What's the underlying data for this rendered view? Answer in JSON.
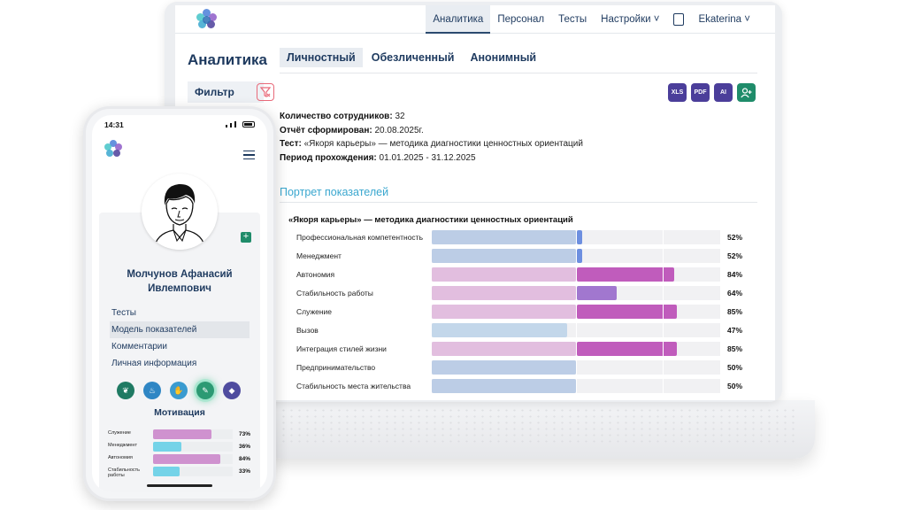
{
  "desktop": {
    "nav": {
      "items": [
        "Аналитика",
        "Персонал",
        "Тесты",
        "Настройки"
      ],
      "active_index": 0,
      "user": "Ekaterina"
    },
    "page_title": "Аналитика",
    "tabs": [
      "Личностный",
      "Обезличенный",
      "Анонимный"
    ],
    "filter_label": "Фильтр",
    "info": {
      "employees_label": "Количество сотрудников:",
      "employees_value": "32",
      "report_label": "Отчёт сформирован:",
      "report_value": "20.08.2025г.",
      "test_label": "Тест:",
      "test_value": "«Якоря карьеры» — методика диагностики ценностных ориентаций",
      "period_label": "Период прохождения:",
      "period_value": "01.01.2025 - 31.12.2025"
    },
    "section_title": "Портрет показателей",
    "chart_title": "«Якоря карьеры» — методика диагностики ценностных ориентаций"
  },
  "chart_data": {
    "type": "bar",
    "orientation": "horizontal",
    "title": "«Якоря карьеры» — методика диагностики ценностных ориентаций",
    "categories": [
      "Профессиональная компетентность",
      "Менеджмент",
      "Автономия",
      "Стабильность работы",
      "Служение",
      "Вызов",
      "Интеграция стилей жизни",
      "Предпринимательство",
      "Стабильность места жительства"
    ],
    "values": [
      52,
      52,
      84,
      64,
      85,
      47,
      85,
      50,
      50
    ],
    "labels": [
      "52%",
      "52%",
      "84%",
      "64%",
      "85%",
      "47%",
      "85%",
      "50%",
      "50%"
    ],
    "xlim": [
      0,
      100
    ]
  },
  "colors": {
    "pink_light": "#e2bedf",
    "magenta": "#c05cbc",
    "blue_light": "#bccde6",
    "blue_dark": "#6d8fe0",
    "violet": "#a177cf",
    "sky_light": "#c3d7ea",
    "cyan": "#74d3e8",
    "brand": "#1e3a5f",
    "green": "#1f8c6a",
    "indigo": "#4b3e9a"
  },
  "mobile": {
    "time": "14:31",
    "name_line1": "Молчунов Афанасий",
    "name_line2": "Ивлемпович",
    "menu": [
      "Тесты",
      "Модель показателей",
      "Комментарии",
      "Личная информация"
    ],
    "active_menu_index": 1,
    "motivation_title": "Мотивация",
    "motivation": [
      {
        "label": "Служение",
        "value": 73,
        "pct": "73%"
      },
      {
        "label": "Менеджмент",
        "value": 36,
        "pct": "36%"
      },
      {
        "label": "Автономия",
        "value": 84,
        "pct": "84%"
      },
      {
        "label": "Стабильность работы",
        "value": 33,
        "pct": "33%"
      }
    ]
  }
}
